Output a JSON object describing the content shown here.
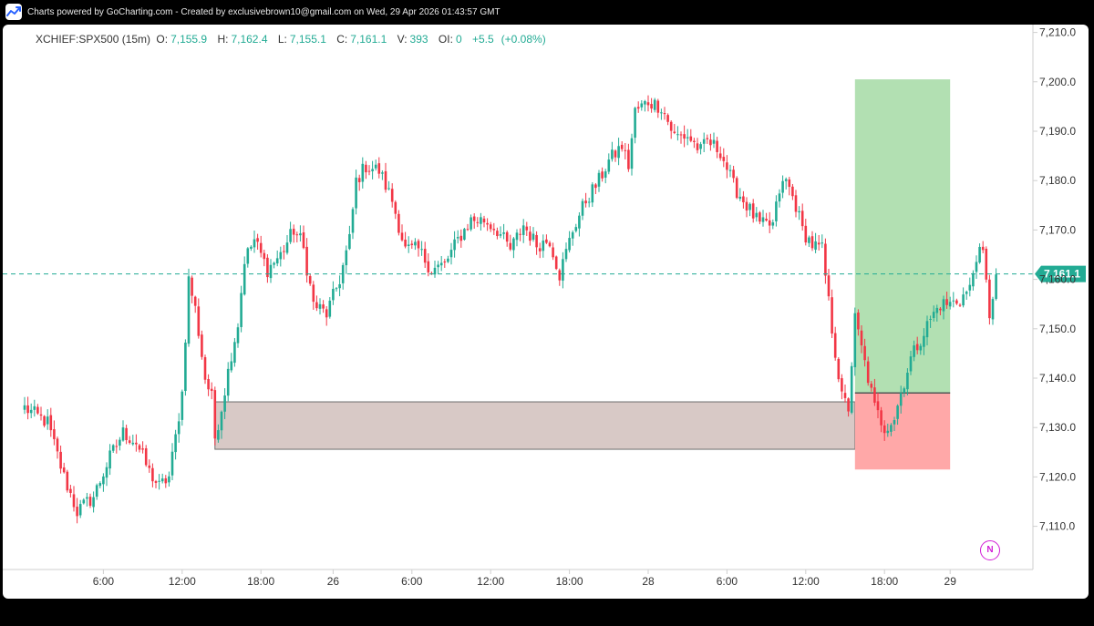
{
  "header": {
    "text": "Charts powered by GoCharting.com - Created by exclusivebrown10@gmail.com on Wed, 29 Apr 2026 01:43:57 GMT",
    "logo_icon": "gocharting-logo-icon"
  },
  "legend": {
    "symbol": "XCHIEF:SPX500 (15m)",
    "o_label": "O:",
    "o_value": "7,155.9",
    "h_label": "H:",
    "h_value": "7,162.4",
    "l_label": "L:",
    "l_value": "7,155.1",
    "c_label": "C:",
    "c_value": "7,161.1",
    "v_label": "V:",
    "v_value": "393",
    "oi_label": "OI:",
    "oi_value": "0",
    "change": "+5.5",
    "change_pct": "(+0.08%)"
  },
  "indicator_badge": "N",
  "colors": {
    "up": "#22ab94",
    "down": "#f23645",
    "price_line": "#22ab94",
    "zone": "#d8c9c6",
    "profit": "#b2e0b2",
    "loss": "#ffa8a8"
  },
  "chart_data": {
    "type": "candlestick",
    "symbol": "XCHIEF:SPX500",
    "timeframe": "15m",
    "ylim": [
      7102,
      7212
    ],
    "y_ticks": [
      "7,210.0",
      "7,200.0",
      "7,190.0",
      "7,180.0",
      "7,170.0",
      "7,160.0",
      "7,150.0",
      "7,140.0",
      "7,130.0",
      "7,120.0",
      "7,110.0"
    ],
    "y_tick_values": [
      7210,
      7200,
      7190,
      7180,
      7170,
      7160,
      7150,
      7140,
      7130,
      7120,
      7110
    ],
    "x_ticks": [
      "6:00",
      "12:00",
      "18:00",
      "26",
      "6:00",
      "12:00",
      "18:00",
      "28",
      "6:00",
      "12:00",
      "18:00",
      "29"
    ],
    "x_tick_index": [
      24,
      48,
      72,
      94,
      118,
      142,
      166,
      190,
      214,
      238,
      262,
      282
    ],
    "last_price": 7161.1,
    "last_price_label": "7,161.1",
    "demand_zone": {
      "start_index": 58,
      "end_index": 253,
      "top": 7135.2,
      "bottom": 7125.6
    },
    "position": {
      "start_index": 253,
      "end_index": 282,
      "entry": 7137.0,
      "target": 7200.5,
      "stop": 7121.5
    },
    "anchors": [
      [
        0,
        7134
      ],
      [
        7,
        7131
      ],
      [
        12,
        7120
      ],
      [
        16,
        7113
      ],
      [
        21,
        7116
      ],
      [
        26,
        7124
      ],
      [
        30,
        7129
      ],
      [
        34,
        7127
      ],
      [
        38,
        7121
      ],
      [
        41,
        7118
      ],
      [
        44,
        7120
      ],
      [
        46,
        7128
      ],
      [
        48,
        7137
      ],
      [
        50,
        7160
      ],
      [
        52,
        7154
      ],
      [
        55,
        7140
      ],
      [
        57,
        7136
      ],
      [
        58,
        7128
      ],
      [
        60,
        7134
      ],
      [
        63,
        7145
      ],
      [
        65,
        7151
      ],
      [
        67,
        7164
      ],
      [
        70,
        7168
      ],
      [
        74,
        7162
      ],
      [
        78,
        7165
      ],
      [
        82,
        7170
      ],
      [
        84,
        7168
      ],
      [
        85,
        7166
      ],
      [
        88,
        7155
      ],
      [
        92,
        7153
      ],
      [
        96,
        7160
      ],
      [
        99,
        7168
      ],
      [
        101,
        7180
      ],
      [
        104,
        7183
      ],
      [
        108,
        7182
      ],
      [
        112,
        7176
      ],
      [
        116,
        7166
      ],
      [
        120,
        7166
      ],
      [
        124,
        7162
      ],
      [
        128,
        7163
      ],
      [
        132,
        7168
      ],
      [
        136,
        7172
      ],
      [
        140,
        7172
      ],
      [
        144,
        7170
      ],
      [
        148,
        7166
      ],
      [
        152,
        7171
      ],
      [
        156,
        7167
      ],
      [
        160,
        7168
      ],
      [
        163,
        7161
      ],
      [
        167,
        7170
      ],
      [
        171,
        7176
      ],
      [
        175,
        7180
      ],
      [
        178,
        7184
      ],
      [
        182,
        7187
      ],
      [
        184,
        7183
      ],
      [
        186,
        7194
      ],
      [
        190,
        7196
      ],
      [
        194,
        7195
      ],
      [
        196,
        7192
      ],
      [
        198,
        7189
      ],
      [
        202,
        7189
      ],
      [
        206,
        7186
      ],
      [
        208,
        7188
      ],
      [
        212,
        7186
      ],
      [
        216,
        7179
      ],
      [
        220,
        7175
      ],
      [
        224,
        7171
      ],
      [
        228,
        7171
      ],
      [
        230,
        7178
      ],
      [
        232,
        7180
      ],
      [
        235,
        7175
      ],
      [
        237,
        7170
      ],
      [
        240,
        7167
      ],
      [
        243,
        7166
      ],
      [
        246,
        7150
      ],
      [
        249,
        7136
      ],
      [
        251,
        7134
      ],
      [
        253,
        7152
      ],
      [
        255,
        7146
      ],
      [
        257,
        7140
      ],
      [
        259,
        7134
      ],
      [
        262,
        7130
      ],
      [
        265,
        7132
      ],
      [
        267,
        7137
      ],
      [
        270,
        7144
      ],
      [
        273,
        7148
      ],
      [
        276,
        7152
      ],
      [
        279,
        7155
      ],
      [
        282,
        7155
      ],
      [
        285,
        7156
      ],
      [
        288,
        7158
      ],
      [
        290,
        7165
      ],
      [
        292,
        7165
      ],
      [
        294,
        7153
      ],
      [
        296,
        7161
      ]
    ]
  }
}
